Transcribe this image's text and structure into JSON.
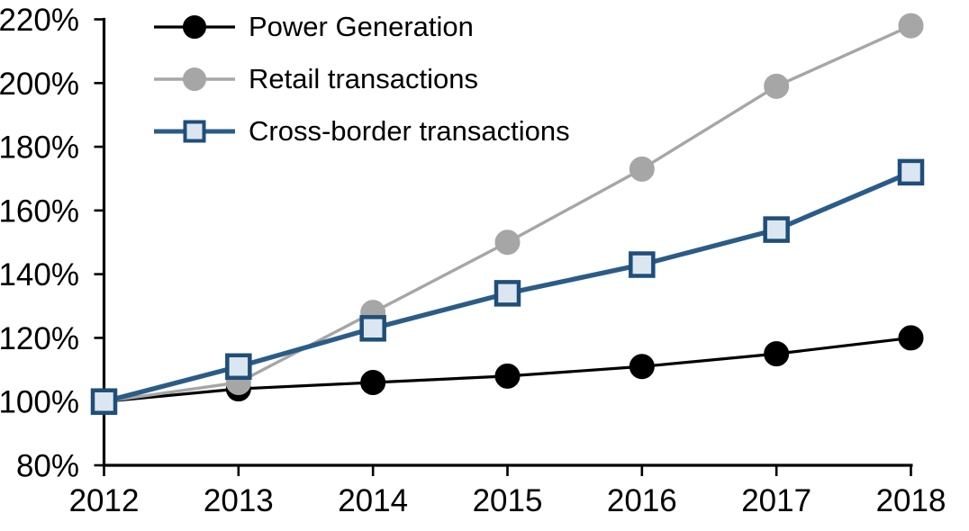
{
  "chart_data": {
    "type": "line",
    "categories": [
      "2012",
      "2013",
      "2014",
      "2015",
      "2016",
      "2017",
      "2018"
    ],
    "series": [
      {
        "name": "Power Generation",
        "values": [
          100,
          104,
          106,
          108,
          111,
          115,
          120
        ],
        "color": "#000000",
        "marker": "circle",
        "marker_fill": "#000000",
        "marker_edge": "#000000",
        "line_width": 3.2
      },
      {
        "name": "Retail transactions",
        "values": [
          100,
          106,
          128,
          150,
          173,
          199,
          218
        ],
        "color": "#a6a6a6",
        "marker": "circle",
        "marker_fill": "#a6a6a6",
        "marker_edge": "#a6a6a6",
        "line_width": 3.4
      },
      {
        "name": "Cross-border transactions",
        "values": [
          100,
          111,
          123,
          134,
          143,
          154,
          172
        ],
        "color": "#2b5c88",
        "marker": "square",
        "marker_fill": "#dce6f1",
        "marker_edge": "#1f4e79",
        "line_width": 5.3
      }
    ],
    "ylim": [
      80,
      220
    ],
    "y_tick_values": [
      80,
      100,
      120,
      140,
      160,
      180,
      200,
      220
    ],
    "y_tick_labels": [
      "80%",
      "100%",
      "120%",
      "140%",
      "160%",
      "180%",
      "200%",
      "220%"
    ],
    "x_tick_labels": [
      "2012",
      "2013",
      "2014",
      "2015",
      "2016",
      "2017",
      "2018"
    ],
    "grid": false,
    "legend_position": "top-left",
    "axis_color": "#000000",
    "tick_label_color": "#000000"
  }
}
